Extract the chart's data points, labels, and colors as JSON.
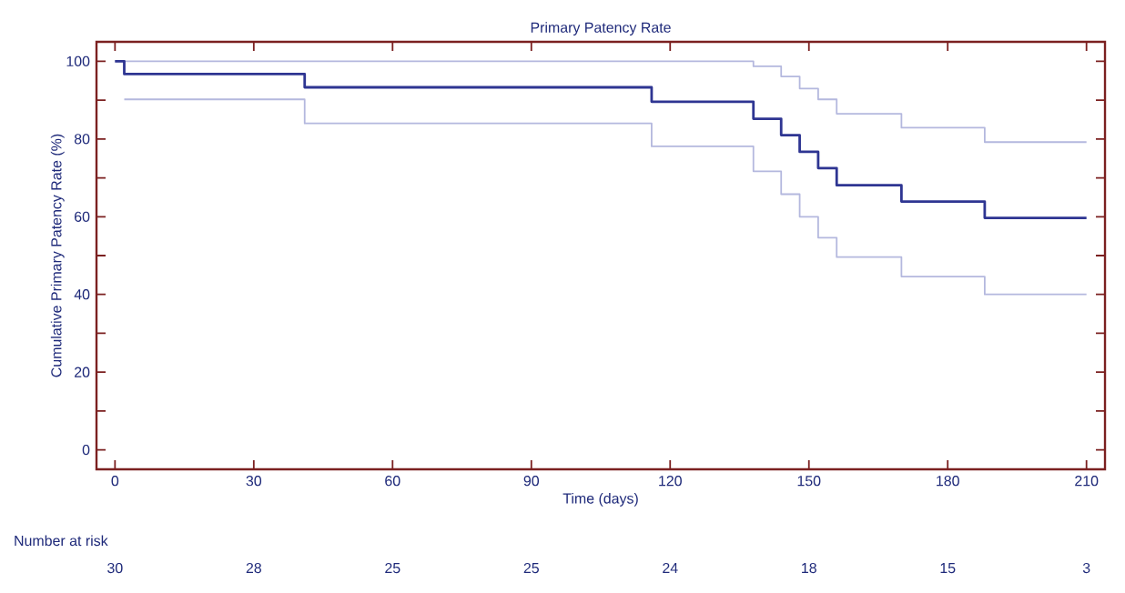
{
  "chart_data": {
    "type": "step",
    "title": "Primary Patency Rate",
    "xlabel": "Time (days)",
    "ylabel": "Cumulative Primary Patency Rate (%)",
    "xlim": [
      -4,
      214
    ],
    "ylim": [
      -5,
      105
    ],
    "xticks": [
      0,
      30,
      60,
      90,
      120,
      150,
      180,
      210
    ],
    "yticks": [
      0,
      {
        "value": 10,
        "label": null
      },
      20,
      {
        "value": 30,
        "label": null
      },
      40,
      {
        "value": 50,
        "label": null
      },
      60,
      {
        "value": 70,
        "label": null
      },
      80,
      {
        "value": 90,
        "label": null
      },
      100
    ],
    "grid": false,
    "marker": "none",
    "series": [
      {
        "color": "#b4b8de",
        "x": [
          0,
          138,
          144,
          148,
          152,
          156,
          170,
          188,
          210
        ],
        "values": [
          100,
          98.7,
          96.1,
          93.0,
          90.2,
          86.5,
          82.9,
          79.2,
          79.2
        ]
      },
      {
        "color": "#b4b8de",
        "x": [
          2,
          41,
          116,
          138,
          144,
          148,
          152,
          156,
          170,
          188,
          210
        ],
        "values": [
          90.2,
          84.0,
          78.1,
          71.7,
          65.8,
          60.0,
          54.6,
          49.6,
          44.6,
          40.0,
          40.0
        ]
      },
      {
        "color": "#2e3592",
        "x": [
          0,
          2,
          41,
          116,
          138,
          144,
          148,
          152,
          156,
          170,
          188,
          210
        ],
        "values": [
          100,
          96.7,
          93.3,
          89.6,
          85.2,
          81.0,
          76.7,
          72.5,
          68.1,
          63.9,
          59.7,
          59.7
        ]
      }
    ],
    "annotations": [
      "Number at risk",
      "30",
      "28",
      "25",
      "25",
      "24",
      "18",
      "15",
      "3"
    ]
  }
}
